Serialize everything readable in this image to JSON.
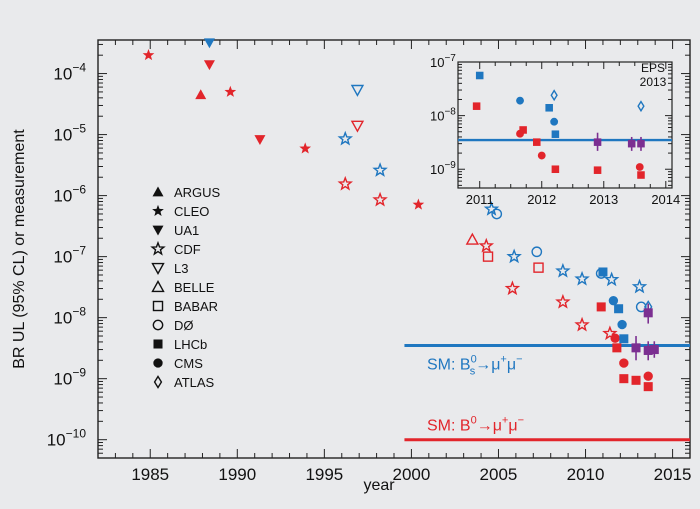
{
  "chart_data": [
    {
      "type": "scatter",
      "xlabel": "year",
      "ylabel": "BR UL (95% CL) or measurement",
      "xlim": [
        1982,
        2016
      ],
      "ylim_log10": [
        -10.3,
        -3.45
      ],
      "x_ticks": [
        1985,
        1990,
        1995,
        2000,
        2005,
        2010,
        2015
      ],
      "y_ticks": [
        {
          "exp": -4,
          "label": "10"
        },
        {
          "exp": -5,
          "label": "10"
        },
        {
          "exp": -6,
          "label": "10"
        },
        {
          "exp": -7,
          "label": "10"
        },
        {
          "exp": -8,
          "label": "10"
        },
        {
          "exp": -9,
          "label": "10"
        },
        {
          "exp": -10,
          "label": "10"
        }
      ],
      "y_tick_exponents": [
        "−4",
        "−5",
        "−6",
        "−7",
        "−8",
        "−9",
        "−10"
      ],
      "colors": {
        "bs": "#1f77c0",
        "bd": "#e2252b",
        "combined": "#7b2f91"
      },
      "legend": {
        "placement": "center-left",
        "entries": [
          {
            "marker": "triangle-up",
            "label": "ARGUS"
          },
          {
            "marker": "star",
            "label": "CLEO"
          },
          {
            "marker": "triangle-down",
            "label": "UA1"
          },
          {
            "marker": "star-open",
            "label": "CDF"
          },
          {
            "marker": "triangle-down-open",
            "label": "L3"
          },
          {
            "marker": "triangle-up-open",
            "label": "BELLE"
          },
          {
            "marker": "square-open",
            "label": "BABAR"
          },
          {
            "marker": "circle-open",
            "label": "DØ"
          },
          {
            "marker": "square",
            "label": "LHCb"
          },
          {
            "marker": "circle",
            "label": "CMS"
          },
          {
            "marker": "diamond-open",
            "label": "ATLAS"
          }
        ]
      },
      "series": [
        {
          "name": "",
          "color": "bd",
          "points": [
            {
              "x": 1984.9,
              "y": 0.0002,
              "m": "star"
            },
            {
              "x": 1987.9,
              "y": 4.5e-05,
              "m": "triangle-up"
            },
            {
              "x": 1988.4,
              "y": 0.00014,
              "m": "triangle-down"
            },
            {
              "x": 1989.6,
              "y": 5e-05,
              "m": "star"
            },
            {
              "x": 1991.3,
              "y": 8.3e-06,
              "m": "triangle-down"
            },
            {
              "x": 1993.9,
              "y": 5.9e-06,
              "m": "star"
            },
            {
              "x": 1996.2,
              "y": 1.55e-06,
              "m": "star-open"
            },
            {
              "x": 1996.9,
              "y": 1.4e-05,
              "m": "triangle-down-open"
            },
            {
              "x": 1998.2,
              "y": 8.5e-07,
              "m": "star-open"
            },
            {
              "x": 2000.4,
              "y": 7.1e-07,
              "m": "star"
            },
            {
              "x": 2003.5,
              "y": 1.9e-07,
              "m": "triangle-up-open"
            },
            {
              "x": 2004.3,
              "y": 1.5e-07,
              "m": "star-open"
            },
            {
              "x": 2004.4,
              "y": 1e-07,
              "m": "square-open"
            },
            {
              "x": 2005.8,
              "y": 3e-08,
              "m": "star-open"
            },
            {
              "x": 2007.3,
              "y": 6.6e-08,
              "m": "square-open"
            },
            {
              "x": 2008.7,
              "y": 1.8e-08,
              "m": "star-open"
            },
            {
              "x": 2009.8,
              "y": 7.6e-09,
              "m": "star-open"
            },
            {
              "x": 2010.9,
              "y": 1.5e-08,
              "m": "square"
            },
            {
              "x": 2011.4,
              "y": 5.5e-09,
              "m": "star-open"
            },
            {
              "x": 2011.7,
              "y": 4.6e-09,
              "m": "circle"
            },
            {
              "x": 2011.8,
              "y": 3.2e-09,
              "m": "square"
            },
            {
              "x": 2012.2,
              "y": 1.8e-09,
              "m": "circle"
            },
            {
              "x": 2012.2,
              "y": 1e-09,
              "m": "square"
            },
            {
              "x": 2012.9,
              "y": 9.4e-10,
              "m": "square"
            },
            {
              "x": 2013.6,
              "y": 1.1e-09,
              "m": "circle"
            },
            {
              "x": 2013.6,
              "y": 7.4e-10,
              "m": "square"
            }
          ]
        },
        {
          "name": "",
          "color": "bs",
          "points": [
            {
              "x": 1988.4,
              "y": 0.00032,
              "m": "triangle-down"
            },
            {
              "x": 1996.2,
              "y": 8.5e-06,
              "m": "star-open"
            },
            {
              "x": 1996.9,
              "y": 5.4e-05,
              "m": "triangle-down-open"
            },
            {
              "x": 1998.2,
              "y": 2.6e-06,
              "m": "star-open"
            },
            {
              "x": 2004.6,
              "y": 6e-07,
              "m": "star-open"
            },
            {
              "x": 2004.9,
              "y": 5e-07,
              "m": "circle-open"
            },
            {
              "x": 2005.9,
              "y": 1e-07,
              "m": "star-open"
            },
            {
              "x": 2007.2,
              "y": 1.2e-07,
              "m": "circle-open"
            },
            {
              "x": 2008.7,
              "y": 5.8e-08,
              "m": "star-open"
            },
            {
              "x": 2009.8,
              "y": 4.3e-08,
              "m": "star-open"
            },
            {
              "x": 2010.9,
              "y": 5.3e-08,
              "m": "circle-open"
            },
            {
              "x": 2011.0,
              "y": 5.6e-08,
              "m": "square"
            },
            {
              "x": 2011.5,
              "y": 4.2e-08,
              "m": "star-open"
            },
            {
              "x": 2011.6,
              "y": 1.9e-08,
              "m": "circle"
            },
            {
              "x": 2011.9,
              "y": 1.4e-08,
              "m": "square"
            },
            {
              "x": 2012.1,
              "y": 7.7e-09,
              "m": "circle"
            },
            {
              "x": 2012.2,
              "y": 4.5e-09,
              "m": "square"
            },
            {
              "x": 2013.1,
              "y": 3.2e-08,
              "m": "star-open"
            },
            {
              "x": 2013.2,
              "y": 1.5e-08,
              "m": "circle-open"
            },
            {
              "x": 2013.6,
              "y": 1.5e-08,
              "m": "diamond-open"
            }
          ]
        },
        {
          "name": "",
          "color": "combined",
          "points": [
            {
              "x": 2012.9,
              "y": 3.2e-09,
              "m": "square",
              "err": [
                2e-09,
                5e-09
              ]
            },
            {
              "x": 2013.6,
              "y": 2.9e-09,
              "m": "square",
              "err": [
                2e-09,
                4.1e-09
              ]
            },
            {
              "x": 2013.6,
              "y": 1.2e-08,
              "m": "square",
              "err": [
                8e-09,
                1.7e-08
              ]
            },
            {
              "x": 2013.95,
              "y": 3e-09,
              "m": "square",
              "err": [
                2.2e-09,
                4.1e-09
              ]
            }
          ]
        }
      ],
      "reference_lines": [
        {
          "label": "SM: B",
          "sub": "s",
          "sup": "0",
          "tail": "→μ",
          "tail_sup": "+",
          "tail2": "μ",
          "tail2_sup": "−",
          "color": "bs",
          "y": 3.5e-09,
          "x_from": 1999.6
        },
        {
          "label": "SM: B",
          "sub": "",
          "sup": "0",
          "tail": "→μ",
          "tail_sup": "+",
          "tail2": "μ",
          "tail2_sup": "−",
          "color": "bd",
          "y": 1e-10,
          "x_from": 1999.6
        }
      ]
    },
    {
      "type": "scatter",
      "role": "inset",
      "annotation": "EPS 2013",
      "annotation_lines": [
        "EPS",
        "2013"
      ],
      "xlim": [
        2010.65,
        2014.1
      ],
      "ylim_log10": [
        -9.35,
        -7.0
      ],
      "x_ticks": [
        2011,
        2012,
        2013,
        2014
      ],
      "y_ticks": [
        {
          "exp": -7,
          "label": "10"
        },
        {
          "exp": -8,
          "label": "10"
        },
        {
          "exp": -9,
          "label": "10"
        }
      ],
      "y_tick_exponents": [
        "−7",
        "−8",
        "−9"
      ],
      "reference_line": {
        "color": "bs",
        "y": 3.5e-09
      },
      "points": [
        {
          "x": 2011.0,
          "y": 5.6e-08,
          "m": "square",
          "color": "bs"
        },
        {
          "x": 2010.95,
          "y": 1.5e-08,
          "m": "square",
          "color": "bd"
        },
        {
          "x": 2011.65,
          "y": 1.9e-08,
          "m": "circle",
          "color": "bs"
        },
        {
          "x": 2011.7,
          "y": 5.4e-09,
          "m": "square",
          "color": "bd"
        },
        {
          "x": 2011.65,
          "y": 4.6e-09,
          "m": "circle",
          "color": "bd"
        },
        {
          "x": 2011.92,
          "y": 3.2e-09,
          "m": "square",
          "color": "bd"
        },
        {
          "x": 2012.12,
          "y": 1.4e-08,
          "m": "square",
          "color": "bs"
        },
        {
          "x": 2012.2,
          "y": 2.4e-08,
          "m": "diamond-open",
          "color": "bs"
        },
        {
          "x": 2012.2,
          "y": 7.7e-09,
          "m": "circle",
          "color": "bs"
        },
        {
          "x": 2012.22,
          "y": 4.5e-09,
          "m": "square",
          "color": "bs"
        },
        {
          "x": 2012.0,
          "y": 1.8e-09,
          "m": "circle",
          "color": "bd"
        },
        {
          "x": 2012.22,
          "y": 1e-09,
          "m": "square",
          "color": "bd"
        },
        {
          "x": 2012.9,
          "y": 9.6e-10,
          "m": "square",
          "color": "bd"
        },
        {
          "x": 2013.58,
          "y": 1.1e-09,
          "m": "circle",
          "color": "bd"
        },
        {
          "x": 2013.6,
          "y": 7.8e-10,
          "m": "square",
          "color": "bd"
        },
        {
          "x": 2013.6,
          "y": 1.5e-08,
          "m": "diamond-open",
          "color": "bs"
        },
        {
          "x": 2012.9,
          "y": 3.2e-09,
          "m": "square",
          "color": "combined",
          "err": [
            2.2e-09,
            4.8e-09
          ]
        },
        {
          "x": 2013.45,
          "y": 3e-09,
          "m": "square",
          "color": "combined",
          "err": [
            2.2e-09,
            4e-09
          ]
        },
        {
          "x": 2013.6,
          "y": 3e-09,
          "m": "square",
          "color": "combined",
          "err": [
            2.2e-09,
            4e-09
          ]
        }
      ]
    }
  ]
}
